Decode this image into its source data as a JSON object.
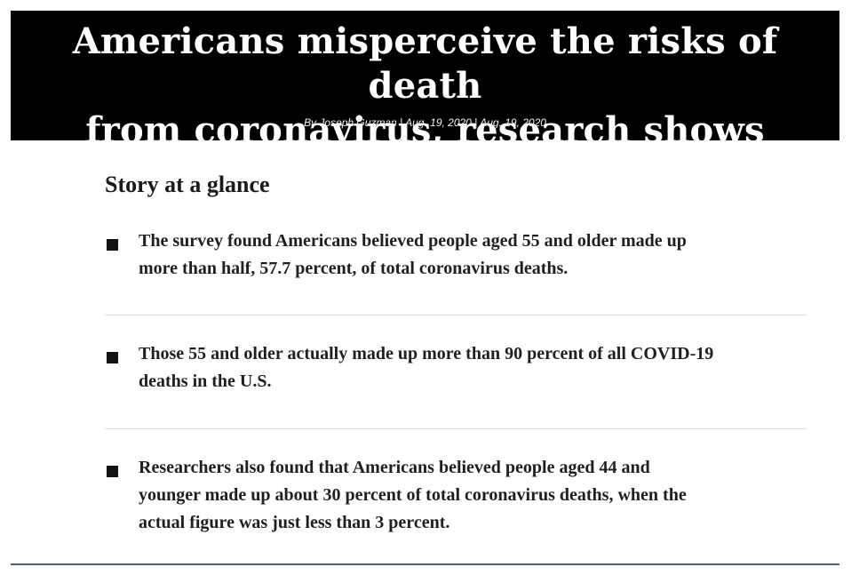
{
  "article": {
    "headline_line1": "Americans misperceive the risks of death",
    "headline_line2": "from coronavirus, research shows",
    "byline": "By Joseph Guzman | Aug. 19, 2020 | Aug. 19, 2020"
  },
  "glance": {
    "title": "Story at a glance",
    "bullets": [
      {
        "line1": "The survey found Americans believed people aged 55 and older made up",
        "line2": "more than half, 57.7 percent, of total coronavirus deaths."
      },
      {
        "line1": "Those 55 and older actually made up more than 90 percent of all COVID-19",
        "line2": "deaths in the U.S."
      },
      {
        "line1": "Researchers also found that Americans believed people aged 44 and",
        "line2": "younger made up about 30 percent of total coronavirus deaths, when the",
        "line3": "actual figure was just less than 3 percent."
      }
    ]
  },
  "colors": {
    "header_bg": "#000000",
    "header_text": "#ffffff",
    "divider": "#dcdcdc",
    "bottom_rule": "#4a6478"
  }
}
